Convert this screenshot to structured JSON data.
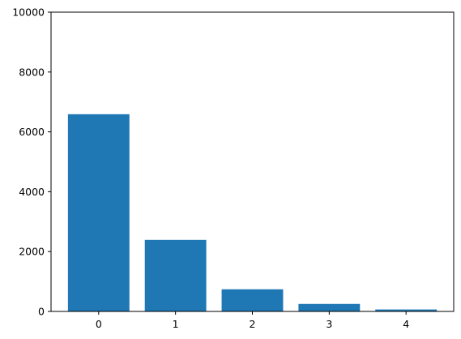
{
  "chart_data": {
    "type": "bar",
    "categories": [
      "0",
      "1",
      "2",
      "3",
      "4"
    ],
    "x": [
      0,
      1,
      2,
      3,
      4
    ],
    "values": [
      6590,
      2390,
      740,
      250,
      65
    ],
    "ylim": [
      0,
      10000
    ],
    "xlim": [
      -0.62,
      4.62
    ],
    "yticks": [
      0,
      2000,
      4000,
      6000,
      8000,
      10000
    ],
    "ytick_labels": [
      "0",
      "2000",
      "4000",
      "6000",
      "8000",
      "10000"
    ],
    "xtick_labels": [
      "0",
      "1",
      "2",
      "3",
      "4"
    ],
    "bar_width": 0.8,
    "title": "",
    "xlabel": "",
    "ylabel": "",
    "grid": false,
    "colors": {
      "bar": "#1f77b4",
      "axis": "#000000"
    }
  }
}
